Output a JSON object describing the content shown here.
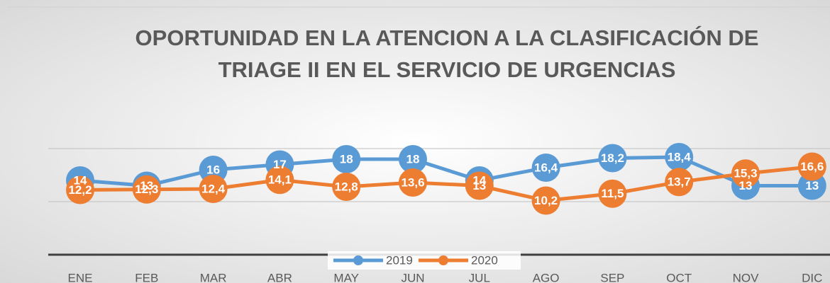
{
  "chart_data": {
    "type": "line",
    "title": "OPORTUNIDAD EN LA ATENCION A LA CLASIFICACIÓN DE",
    "subtitle": "TRIAGE II EN EL SERVICIO DE URGENCIAS",
    "categories": [
      "ENE",
      "FEB",
      "MAR",
      "ABR",
      "MAY",
      "JUN",
      "JUL",
      "AGO",
      "SEP",
      "OCT",
      "NOV",
      "DIC"
    ],
    "series": [
      {
        "name": "2019",
        "color": "#5b9bd5",
        "values": [
          14,
          13,
          16,
          17,
          18,
          18,
          14,
          16.4,
          18.2,
          18.4,
          13,
          13
        ],
        "value_labels": [
          "14",
          "13",
          "16",
          "17",
          "18",
          "18",
          "14",
          "16,4",
          "18,2",
          "18,4",
          "13",
          "13"
        ]
      },
      {
        "name": "2020",
        "color": "#ed7d31",
        "values": [
          12.2,
          12.3,
          12.4,
          14.1,
          12.8,
          13.6,
          13,
          10.2,
          11.5,
          13.7,
          15.3,
          16.6
        ],
        "value_labels": [
          "12,2",
          "12,3",
          "12,4",
          "14,1",
          "12,8",
          "13,6",
          "13",
          "10,2",
          "11,5",
          "13,7",
          "15,3",
          "16,6"
        ]
      }
    ],
    "ylim": [
      0,
      20
    ],
    "yticks": [
      0,
      10,
      20
    ],
    "grid": true,
    "legend": "bottom"
  }
}
